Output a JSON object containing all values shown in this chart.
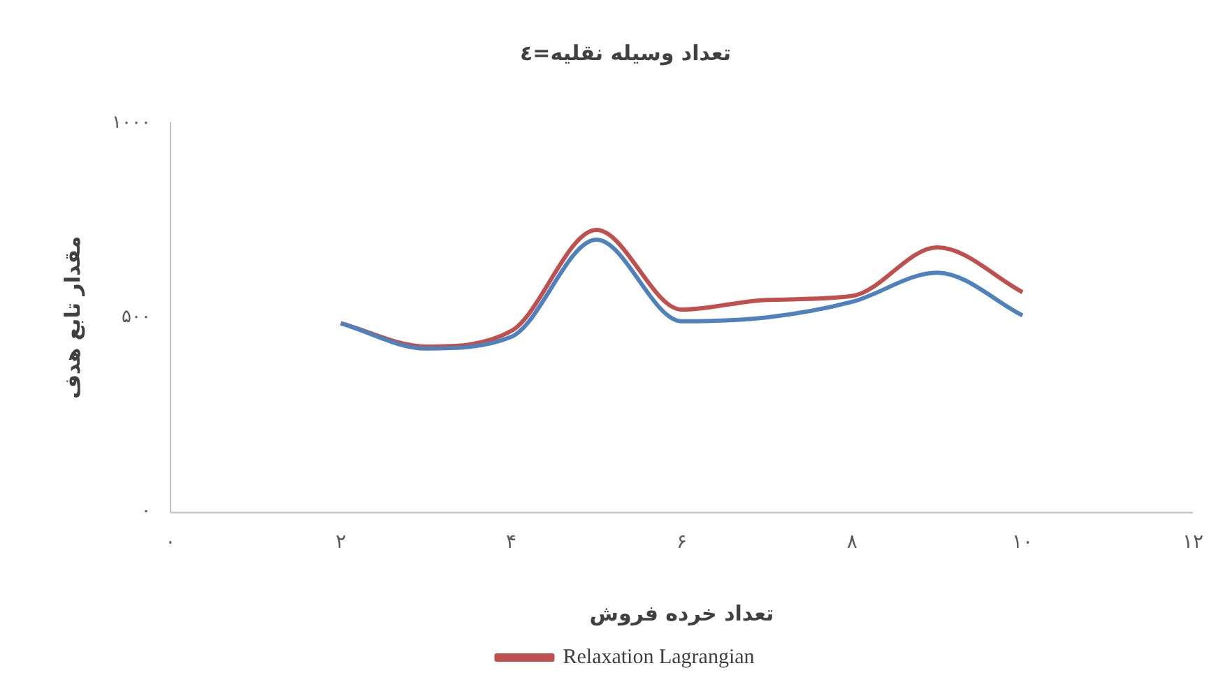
{
  "chart_data": {
    "type": "line",
    "title": "تعداد وسیله نقلیه=٤",
    "xlabel": "تعداد خرده فروش",
    "ylabel": "مقدار تابع هدف",
    "x": [
      2,
      3,
      4,
      5,
      6,
      7,
      8,
      9,
      10
    ],
    "series": [
      {
        "color": "#4f81bd",
        "values": [
          485,
          420,
          450,
          700,
          490,
          500,
          540,
          615,
          505
        ]
      },
      {
        "name": "Relaxation Lagrangian",
        "color": "#c0504d",
        "values": [
          485,
          425,
          465,
          725,
          520,
          545,
          555,
          680,
          565
        ]
      }
    ],
    "xlim": [
      0,
      12
    ],
    "xticks": [
      {
        "value": 0,
        "label": "۰"
      },
      {
        "value": 2,
        "label": "۲"
      },
      {
        "value": 4,
        "label": "۴"
      },
      {
        "value": 6,
        "label": "۶"
      },
      {
        "value": 8,
        "label": "۸"
      },
      {
        "value": 10,
        "label": "۱۰"
      },
      {
        "value": 12,
        "label": "۱۲"
      }
    ],
    "ylim": [
      0,
      1000
    ],
    "yticks": [
      {
        "value": 0,
        "label": "۰"
      },
      {
        "value": 500,
        "label": "۵۰۰"
      },
      {
        "value": 1000,
        "label": "۱۰۰۰"
      }
    ],
    "grid": false,
    "legend": "bottom",
    "marker": "none",
    "line_style": "solid"
  }
}
